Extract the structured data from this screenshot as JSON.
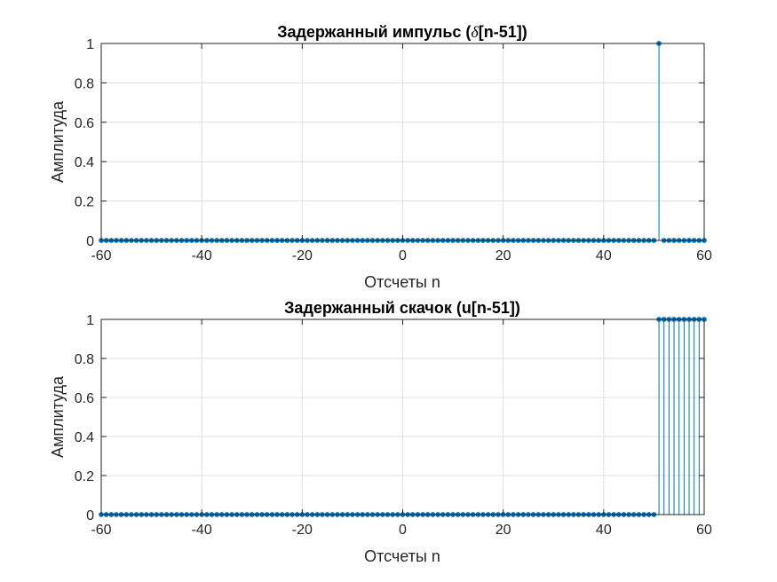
{
  "chart_data": [
    {
      "type": "stem",
      "title": "Задержанный импульс (δ[n-51])",
      "title_prefix": "Задержанный импульс (",
      "title_symbol": "δ",
      "title_suffix": "[n-51])",
      "xlabel": "Отсчеты n",
      "ylabel": "Амплитуда",
      "xlim": [
        -60,
        60
      ],
      "ylim": [
        0,
        1
      ],
      "xticks": [
        "-60",
        "-40",
        "-20",
        "0",
        "20",
        "40",
        "60"
      ],
      "yticks": [
        "0",
        "0.2",
        "0.4",
        "0.6",
        "0.8",
        "1"
      ],
      "grid": true,
      "x_range": [
        -60,
        60
      ],
      "nonzero": [
        {
          "n": 51,
          "value": 1
        }
      ],
      "default_value": 0,
      "color": "#0072BD"
    },
    {
      "type": "stem",
      "title": "Задержанный скачок (u[n-51])",
      "title_prefix": "Задержанный скачок (u[n-51])",
      "title_symbol": "",
      "title_suffix": "",
      "xlabel": "Отсчеты n",
      "ylabel": "Амплитуда",
      "xlim": [
        -60,
        60
      ],
      "ylim": [
        0,
        1
      ],
      "xticks": [
        "-60",
        "-40",
        "-20",
        "0",
        "20",
        "40",
        "60"
      ],
      "yticks": [
        "0",
        "0.2",
        "0.4",
        "0.6",
        "0.8",
        "1"
      ],
      "grid": true,
      "x_range": [
        -60,
        60
      ],
      "step_start": 51,
      "step_value": 1,
      "default_value": 0,
      "color": "#0072BD"
    }
  ]
}
